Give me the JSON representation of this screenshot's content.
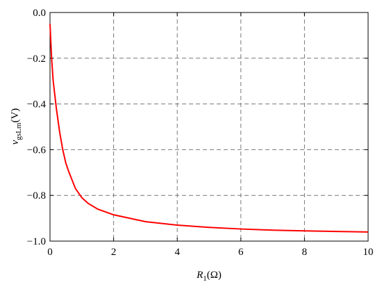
{
  "chart_data": {
    "type": "line",
    "xlabel": {
      "main": "R",
      "sub": "1",
      "unit": "(Ω)"
    },
    "ylabel": {
      "main": "v",
      "sub": "gsLm",
      "unit": "(V)"
    },
    "x": [
      0,
      0.05,
      0.1,
      0.2,
      0.3,
      0.4,
      0.5,
      0.6,
      0.8,
      1.0,
      1.2,
      1.5,
      2,
      3,
      4,
      5,
      6,
      7,
      8,
      9,
      10
    ],
    "series": [
      {
        "color": "#ff0000",
        "values": [
          -0.05,
          -0.2,
          -0.3,
          -0.42,
          -0.52,
          -0.6,
          -0.66,
          -0.7,
          -0.77,
          -0.81,
          -0.835,
          -0.86,
          -0.885,
          -0.915,
          -0.93,
          -0.94,
          -0.947,
          -0.952,
          -0.955,
          -0.958,
          -0.96
        ]
      }
    ],
    "xlim": [
      0,
      10
    ],
    "xticks": [
      0,
      2,
      4,
      6,
      8,
      10
    ],
    "ylim": [
      -1.0,
      0.0
    ],
    "yticks": [
      {
        "value": -1.0,
        "label": "−1.0"
      },
      {
        "value": -0.8,
        "label": "−0.8"
      },
      {
        "value": -0.6,
        "label": "−0.6"
      },
      {
        "value": -0.4,
        "label": "−0.4"
      },
      {
        "value": -0.2,
        "label": "−0.2"
      },
      {
        "value": 0.0,
        "label": "0.0"
      }
    ],
    "grid": true
  }
}
